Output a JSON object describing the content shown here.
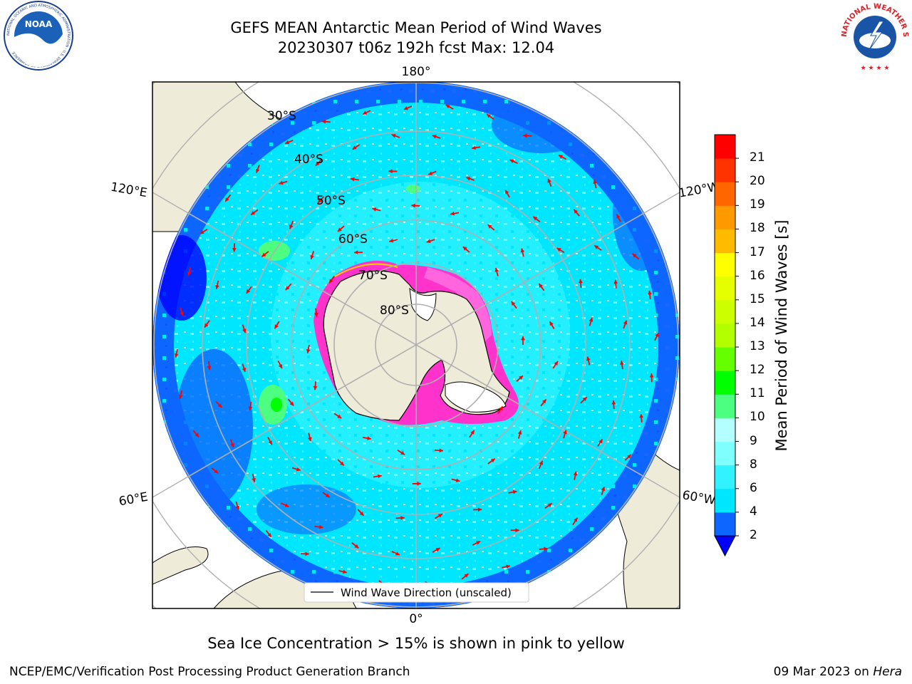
{
  "title": {
    "line1": "GEFS MEAN Antarctic Mean Period of Wind Waves",
    "line2": "20230307 t06z 192h fcst   Max: 12.04"
  },
  "logos": {
    "noaa": {
      "text": "NOAA",
      "ring_text": "NATIONAL OCEANIC AND ATMOSPHERIC ADMINISTRATION · U.S. DEPARTMENT OF COMMERCE",
      "icon": "noaa-logo-icon"
    },
    "nws": {
      "ring_text": "NATIONAL WEATHER SERVICE",
      "icon": "nws-logo-icon"
    }
  },
  "map": {
    "projection": "south-polar-stereographic",
    "longitude_labels": {
      "top": "180°",
      "bottom": "0°",
      "upper_left": "120°E",
      "upper_right": "120°W",
      "lower_left": "60°E",
      "lower_right": "60°W"
    },
    "latitude_labels": [
      "30°S",
      "40°S",
      "50°S",
      "60°S",
      "70°S",
      "80°S"
    ],
    "legend_label": "Wind Wave Direction (unscaled)",
    "arrow_color": "#ff0000",
    "sea_ice_colors": [
      "#ff33cc",
      "#ffcc00"
    ],
    "land_color": "#efebd9"
  },
  "colorbar": {
    "label": "Mean Period of Wind Waves [s]",
    "ticks": [
      "2",
      "4",
      "6",
      "8",
      "9",
      "10",
      "11",
      "12",
      "13",
      "14",
      "15",
      "16",
      "17",
      "18",
      "19",
      "20",
      "21"
    ],
    "colors": [
      "#0d66ff",
      "#00e6ff",
      "#33f2ff",
      "#80ffff",
      "#b3ffff",
      "#4dff80",
      "#00ff00",
      "#66ff00",
      "#b3ff00",
      "#ccff00",
      "#e6ff00",
      "#ffff00",
      "#ffbb00",
      "#ff9900",
      "#ff6600",
      "#ff3300",
      "#ff0000"
    ],
    "extend_color": "#0000ff"
  },
  "note": "Sea Ice Concentration > 15% is shown in pink to yellow",
  "footer": {
    "left": "NCEP/EMC/Verification Post Processing Product Generation Branch",
    "date": "09 Mar 2023 on ",
    "machine": "Hera"
  }
}
